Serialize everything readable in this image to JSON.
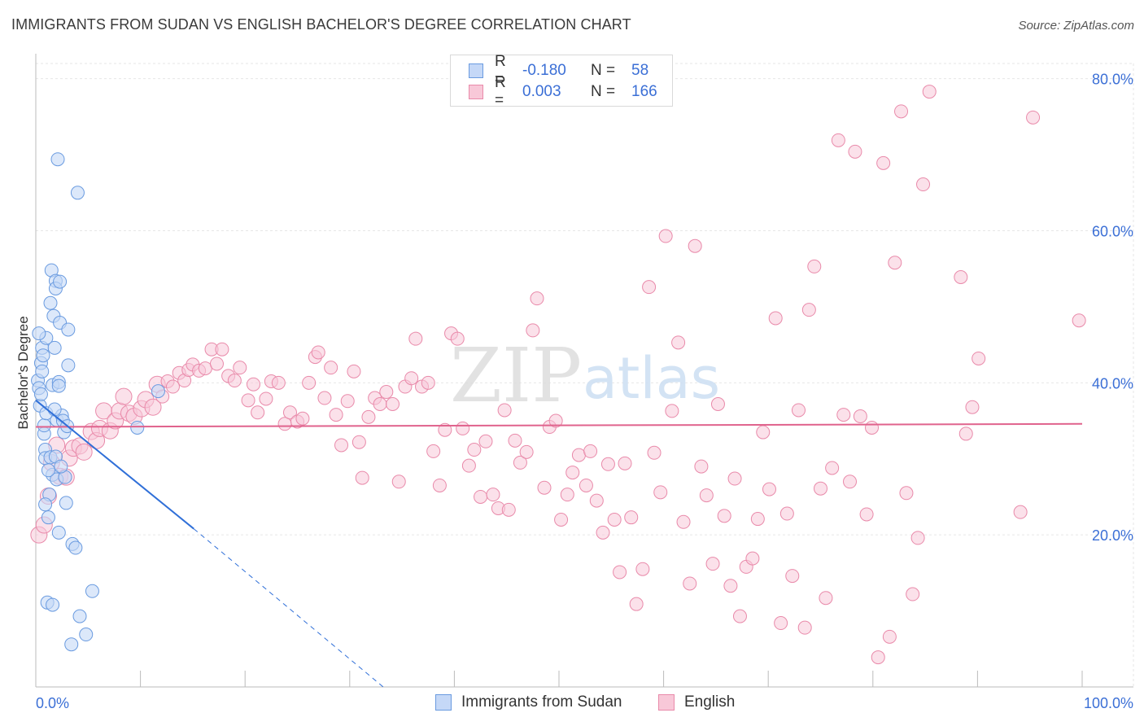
{
  "header": {
    "title": "IMMIGRANTS FROM SUDAN VS ENGLISH BACHELOR'S DEGREE CORRELATION CHART",
    "source": "Source: ZipAtlas.com"
  },
  "colors": {
    "sudan_fill": "#c5d8f7",
    "sudan_stroke": "#6a9be0",
    "sudan_line": "#2f6fd8",
    "english_fill": "#f8c8d8",
    "english_stroke": "#e98aaa",
    "english_line": "#e0638d",
    "axis_label": "#3b6fd6",
    "grid": "#e6e6e6"
  },
  "legend_top": {
    "rows": [
      {
        "r_label": "R =",
        "r_value": "-0.180",
        "n_label": "N =",
        "n_value": "58",
        "series": "sudan"
      },
      {
        "r_label": "R =",
        "r_value": "0.003",
        "n_label": "N =",
        "n_value": "166",
        "series": "english"
      }
    ]
  },
  "legend_bottom": {
    "items": [
      {
        "label": "Immigrants from Sudan",
        "series": "sudan"
      },
      {
        "label": "English",
        "series": "english"
      }
    ]
  },
  "watermark": {
    "zip": "ZIP",
    "atlas": "atlas"
  },
  "chart_data": {
    "type": "scatter",
    "title": "IMMIGRANTS FROM SUDAN VS ENGLISH BACHELOR'S DEGREE CORRELATION CHART",
    "xlabel": "",
    "ylabel": "Bachelor's Degree",
    "xlim": [
      0,
      100
    ],
    "ylim": [
      0,
      82
    ],
    "x_tick_labels": [
      "0.0%",
      "100.0%"
    ],
    "y_ticks": [
      20,
      40,
      60,
      80
    ],
    "y_tick_labels": [
      "20.0%",
      "40.0%",
      "60.0%",
      "80.0%"
    ],
    "grid": true,
    "series": [
      {
        "name": "Immigrants from Sudan",
        "key": "sudan",
        "R": -0.18,
        "N": 58,
        "trend": {
          "x0": 0,
          "y0": 37.7,
          "x1": 15.1,
          "y1": 20.8,
          "dashed_to_x": 33.2,
          "dashed_to_y": 0
        },
        "points": [
          [
            0.2,
            40.3
          ],
          [
            0.3,
            39.3
          ],
          [
            0.4,
            37.0
          ],
          [
            0.5,
            42.6
          ],
          [
            0.6,
            44.6
          ],
          [
            0.7,
            43.6
          ],
          [
            0.8,
            33.3
          ],
          [
            0.8,
            34.4
          ],
          [
            0.9,
            31.2
          ],
          [
            0.9,
            30.1
          ],
          [
            1.0,
            45.9
          ],
          [
            1.1,
            11.1
          ],
          [
            1.2,
            22.3
          ],
          [
            1.3,
            25.3
          ],
          [
            1.4,
            50.5
          ],
          [
            1.4,
            30.2
          ],
          [
            1.5,
            54.8
          ],
          [
            1.6,
            10.8
          ],
          [
            1.6,
            39.7
          ],
          [
            1.6,
            27.9
          ],
          [
            1.7,
            48.8
          ],
          [
            1.8,
            44.6
          ],
          [
            1.9,
            53.4
          ],
          [
            1.9,
            52.4
          ],
          [
            1.9,
            30.3
          ],
          [
            2.0,
            35.1
          ],
          [
            2.0,
            27.3
          ],
          [
            2.1,
            69.4
          ],
          [
            2.2,
            40.1
          ],
          [
            2.2,
            39.6
          ],
          [
            2.2,
            20.3
          ],
          [
            2.3,
            47.9
          ],
          [
            2.3,
            53.3
          ],
          [
            2.5,
            35.7
          ],
          [
            2.6,
            35.0
          ],
          [
            2.7,
            33.5
          ],
          [
            2.8,
            27.6
          ],
          [
            2.9,
            24.2
          ],
          [
            3.0,
            34.3
          ],
          [
            3.1,
            47.0
          ],
          [
            3.1,
            42.3
          ],
          [
            3.4,
            5.6
          ],
          [
            3.5,
            18.8
          ],
          [
            3.8,
            18.3
          ],
          [
            4.0,
            65.0
          ],
          [
            4.2,
            9.3
          ],
          [
            4.8,
            6.9
          ],
          [
            5.4,
            12.6
          ],
          [
            9.7,
            34.1
          ],
          [
            11.7,
            38.9
          ],
          [
            1.0,
            36.0
          ],
          [
            0.5,
            38.5
          ],
          [
            1.2,
            28.5
          ],
          [
            1.8,
            36.5
          ],
          [
            0.6,
            41.5
          ],
          [
            2.4,
            29.0
          ],
          [
            0.3,
            46.5
          ],
          [
            0.9,
            24.0
          ]
        ]
      },
      {
        "name": "English",
        "key": "english",
        "R": 0.003,
        "N": 166,
        "trend": {
          "x0": 0,
          "y0": 34.2,
          "x1": 100,
          "y1": 34.6
        },
        "points": [
          [
            0.3,
            20.0
          ],
          [
            0.8,
            21.3
          ],
          [
            1.2,
            25.1
          ],
          [
            1.5,
            29.5
          ],
          [
            2.0,
            31.8
          ],
          [
            2.3,
            27.7
          ],
          [
            2.9,
            27.6
          ],
          [
            3.2,
            30.1
          ],
          [
            3.6,
            31.4
          ],
          [
            4.2,
            31.7
          ],
          [
            4.6,
            30.9
          ],
          [
            5.3,
            33.6
          ],
          [
            5.8,
            32.4
          ],
          [
            6.1,
            34.0
          ],
          [
            6.5,
            36.3
          ],
          [
            7.1,
            33.7
          ],
          [
            7.6,
            35.0
          ],
          [
            8.0,
            36.3
          ],
          [
            8.4,
            38.2
          ],
          [
            8.9,
            36.0
          ],
          [
            9.4,
            35.6
          ],
          [
            10.1,
            36.6
          ],
          [
            10.5,
            37.8
          ],
          [
            11.2,
            36.8
          ],
          [
            11.6,
            39.8
          ],
          [
            12.1,
            38.2
          ],
          [
            12.6,
            40.2
          ],
          [
            13.1,
            39.5
          ],
          [
            13.7,
            41.3
          ],
          [
            14.2,
            40.3
          ],
          [
            14.6,
            41.7
          ],
          [
            15.0,
            42.4
          ],
          [
            15.6,
            41.6
          ],
          [
            16.2,
            41.9
          ],
          [
            16.8,
            44.4
          ],
          [
            17.3,
            42.5
          ],
          [
            17.8,
            44.4
          ],
          [
            18.4,
            40.9
          ],
          [
            19.0,
            40.3
          ],
          [
            19.5,
            42.0
          ],
          [
            20.3,
            37.7
          ],
          [
            20.8,
            39.8
          ],
          [
            21.2,
            36.1
          ],
          [
            22.0,
            37.9
          ],
          [
            22.5,
            40.2
          ],
          [
            23.2,
            40.0
          ],
          [
            23.8,
            34.6
          ],
          [
            24.3,
            36.1
          ],
          [
            25.0,
            34.9
          ],
          [
            25.5,
            35.3
          ],
          [
            26.1,
            40.0
          ],
          [
            26.7,
            43.4
          ],
          [
            27.0,
            44.0
          ],
          [
            27.6,
            38.0
          ],
          [
            28.2,
            42.0
          ],
          [
            28.7,
            35.8
          ],
          [
            29.2,
            31.8
          ],
          [
            29.8,
            37.6
          ],
          [
            30.4,
            41.5
          ],
          [
            30.9,
            32.2
          ],
          [
            31.2,
            27.5
          ],
          [
            31.8,
            35.5
          ],
          [
            32.4,
            38.0
          ],
          [
            32.9,
            37.2
          ],
          [
            33.5,
            38.8
          ],
          [
            34.1,
            37.2
          ],
          [
            34.7,
            27.0
          ],
          [
            35.3,
            39.5
          ],
          [
            35.9,
            40.6
          ],
          [
            36.3,
            45.8
          ],
          [
            36.9,
            39.5
          ],
          [
            37.5,
            40.0
          ],
          [
            38.0,
            31.0
          ],
          [
            38.6,
            26.5
          ],
          [
            39.1,
            33.8
          ],
          [
            39.7,
            46.5
          ],
          [
            40.3,
            45.8
          ],
          [
            40.8,
            34.0
          ],
          [
            41.4,
            29.1
          ],
          [
            41.9,
            31.2
          ],
          [
            42.5,
            25.0
          ],
          [
            43.0,
            32.3
          ],
          [
            43.7,
            25.3
          ],
          [
            44.2,
            23.5
          ],
          [
            44.8,
            36.4
          ],
          [
            45.2,
            23.3
          ],
          [
            45.8,
            32.4
          ],
          [
            46.3,
            29.5
          ],
          [
            46.9,
            30.9
          ],
          [
            47.5,
            46.9
          ],
          [
            47.9,
            51.1
          ],
          [
            48.6,
            26.2
          ],
          [
            49.1,
            34.2
          ],
          [
            49.7,
            35.0
          ],
          [
            50.2,
            22.0
          ],
          [
            50.8,
            25.3
          ],
          [
            51.3,
            28.2
          ],
          [
            51.9,
            30.5
          ],
          [
            52.6,
            26.5
          ],
          [
            53.0,
            31.0
          ],
          [
            53.6,
            24.5
          ],
          [
            54.2,
            20.3
          ],
          [
            54.7,
            29.3
          ],
          [
            55.3,
            22.0
          ],
          [
            55.8,
            15.1
          ],
          [
            56.3,
            29.4
          ],
          [
            56.9,
            22.3
          ],
          [
            57.4,
            10.9
          ],
          [
            58.0,
            15.5
          ],
          [
            58.6,
            52.6
          ],
          [
            59.1,
            30.8
          ],
          [
            59.7,
            25.6
          ],
          [
            60.2,
            59.3
          ],
          [
            60.8,
            36.3
          ],
          [
            61.4,
            45.3
          ],
          [
            61.9,
            21.7
          ],
          [
            62.5,
            13.6
          ],
          [
            63.0,
            58.0
          ],
          [
            63.6,
            29.0
          ],
          [
            64.1,
            25.2
          ],
          [
            64.7,
            16.2
          ],
          [
            65.2,
            37.2
          ],
          [
            65.8,
            22.5
          ],
          [
            66.4,
            13.3
          ],
          [
            66.8,
            27.4
          ],
          [
            67.3,
            9.3
          ],
          [
            67.9,
            15.8
          ],
          [
            68.5,
            16.9
          ],
          [
            69.0,
            22.1
          ],
          [
            69.5,
            33.5
          ],
          [
            70.1,
            26.0
          ],
          [
            70.7,
            48.5
          ],
          [
            71.2,
            8.4
          ],
          [
            71.8,
            22.8
          ],
          [
            72.3,
            14.6
          ],
          [
            72.9,
            36.4
          ],
          [
            73.5,
            7.8
          ],
          [
            73.9,
            49.6
          ],
          [
            74.4,
            55.3
          ],
          [
            75.0,
            26.1
          ],
          [
            75.5,
            11.7
          ],
          [
            76.1,
            28.8
          ],
          [
            76.7,
            71.9
          ],
          [
            77.2,
            35.8
          ],
          [
            77.8,
            27.0
          ],
          [
            78.3,
            70.4
          ],
          [
            78.8,
            35.6
          ],
          [
            79.4,
            22.7
          ],
          [
            79.9,
            34.1
          ],
          [
            80.5,
            3.9
          ],
          [
            81.0,
            68.9
          ],
          [
            81.6,
            6.6
          ],
          [
            82.1,
            55.8
          ],
          [
            82.7,
            75.7
          ],
          [
            83.2,
            25.5
          ],
          [
            83.8,
            12.2
          ],
          [
            84.3,
            19.6
          ],
          [
            84.8,
            66.1
          ],
          [
            85.4,
            78.3
          ],
          [
            88.4,
            53.9
          ],
          [
            88.9,
            33.3
          ],
          [
            89.5,
            36.8
          ],
          [
            90.1,
            43.2
          ],
          [
            94.1,
            23.0
          ],
          [
            95.3,
            74.9
          ],
          [
            99.7,
            48.2
          ]
        ]
      }
    ]
  }
}
